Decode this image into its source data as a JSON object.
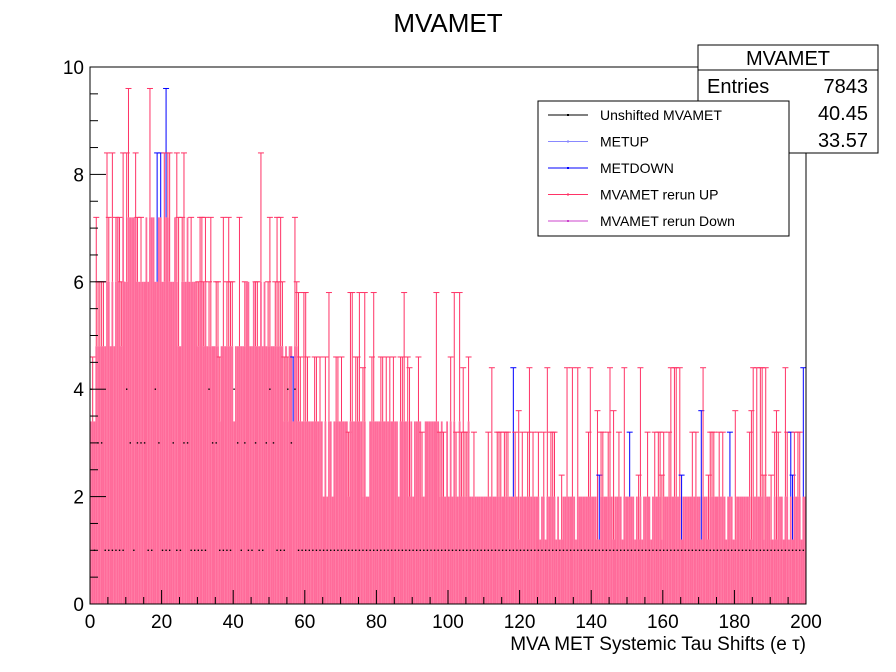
{
  "chart_data": {
    "type": "bar",
    "title": "MVAMET",
    "xlabel": "MVA MET Systemic Tau Shifts (e τ)",
    "ylabel": "",
    "xlim": [
      0,
      200
    ],
    "ylim": [
      0,
      10
    ],
    "x_ticks": [
      "0",
      "20",
      "40",
      "60",
      "80",
      "100",
      "120",
      "140",
      "160",
      "180",
      "200"
    ],
    "y_ticks": [
      "0",
      "2",
      "4",
      "6",
      "8",
      "10"
    ],
    "grid": false,
    "legend_position": "top-right",
    "stats_box": {
      "title": "MVAMET",
      "rows": [
        {
          "label": "Entries",
          "value": "7843"
        },
        {
          "label": "",
          "value": "40.45"
        },
        {
          "label": "",
          "value": "33.57"
        }
      ]
    },
    "series": [
      {
        "name": "Unshifted MVAMET",
        "color": "#000000"
      },
      {
        "name": "METUP",
        "color": "#8888ff"
      },
      {
        "name": "METDOWN",
        "color": "#0000ff"
      },
      {
        "name": "MVAMET rerun UP",
        "color": "#ff3366"
      },
      {
        "name": "MVAMET rerun Down",
        "color": "#cc44cc"
      }
    ],
    "envelope": {
      "x": [
        0,
        5,
        10,
        20,
        30,
        40,
        45,
        65,
        90,
        120,
        150,
        200
      ],
      "y": [
        3.4,
        6.0,
        7.2,
        7.2,
        6.0,
        4.8,
        6.0,
        3.4,
        3.4,
        2.0,
        2.0,
        2.0
      ]
    },
    "fill_color": "#ff6b9a"
  }
}
